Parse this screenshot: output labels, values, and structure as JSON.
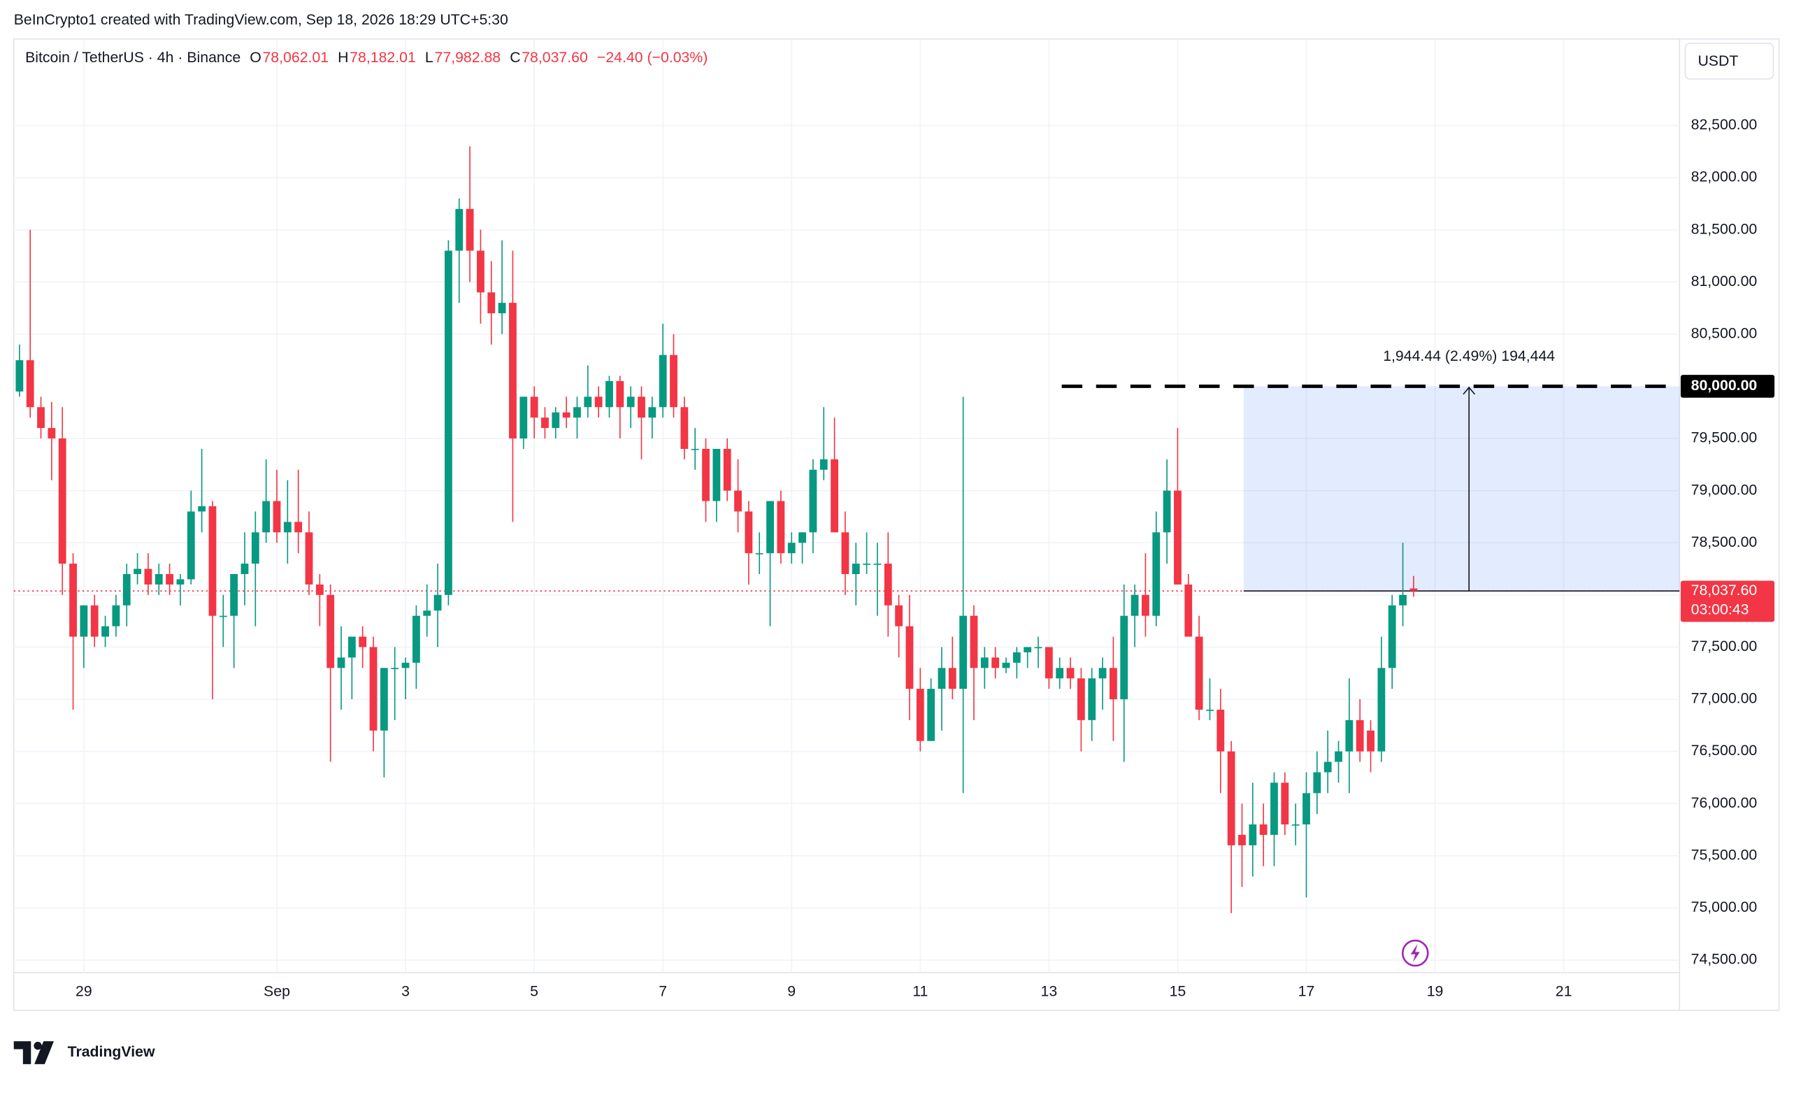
{
  "header": {
    "credit": "BeInCrypto1 created with TradingView.com, Sep 18, 2026 18:29 UTC+5:30"
  },
  "legend": {
    "symbol": "Bitcoin / TetherUS · 4h · Binance",
    "ohlc": [
      {
        "key": "O",
        "value": "78,062.01"
      },
      {
        "key": "H",
        "value": "78,182.01"
      },
      {
        "key": "L",
        "value": "77,982.88"
      },
      {
        "key": "C",
        "value": "78,037.60"
      }
    ],
    "change": "−24.40 (−0.03%)"
  },
  "currency": "USDT",
  "logo": "TradingView",
  "chart_data": {
    "type": "candlestick",
    "up_color": "#089981",
    "down_color": "#f23645",
    "xlim": [
      -0.53,
      154.8
    ],
    "xticks": [
      {
        "value": 6,
        "label": "29"
      },
      {
        "value": 24,
        "label": "Sep"
      },
      {
        "value": 36,
        "label": "3"
      },
      {
        "value": 48,
        "label": "5"
      },
      {
        "value": 60,
        "label": "7"
      },
      {
        "value": 72,
        "label": "9"
      },
      {
        "value": 84,
        "label": "11"
      },
      {
        "value": 96,
        "label": "13"
      },
      {
        "value": 108,
        "label": "15"
      },
      {
        "value": 120,
        "label": "17"
      },
      {
        "value": 132,
        "label": "19"
      },
      {
        "value": 144,
        "label": "21"
      }
    ],
    "ylim": [
      74380,
      83330
    ],
    "yticks": [
      {
        "value": 74500,
        "label": "74,500.00"
      },
      {
        "value": 75000,
        "label": "75,000.00"
      },
      {
        "value": 75500,
        "label": "75,500.00"
      },
      {
        "value": 76000,
        "label": "76,000.00"
      },
      {
        "value": 76500,
        "label": "76,500.00"
      },
      {
        "value": 77000,
        "label": "77,000.00"
      },
      {
        "value": 77500,
        "label": "77,500.00"
      },
      {
        "value": 78000,
        "label": "78,000.00"
      },
      {
        "value": 78500,
        "label": "78,500.00"
      },
      {
        "value": 79000,
        "label": "79,000.00"
      },
      {
        "value": 79500,
        "label": "79,500.00"
      },
      {
        "value": 80500,
        "label": "80,500.00"
      },
      {
        "value": 81000,
        "label": "81,000.00"
      },
      {
        "value": 81500,
        "label": "81,500.00"
      },
      {
        "value": 82000,
        "label": "82,000.00"
      },
      {
        "value": 82500,
        "label": "82,500.00"
      }
    ],
    "grid": true,
    "open": [
      79950,
      80250,
      79800,
      79600,
      79500,
      78300,
      77600,
      77900,
      77600,
      77700,
      77900,
      78200,
      78250,
      78100,
      78200,
      78100,
      78150,
      78800,
      78850,
      77800,
      77800,
      78200,
      78300,
      78600,
      78900,
      78600,
      78700,
      78600,
      78100,
      78000,
      77300,
      77400,
      77600,
      77500,
      76700,
      77300,
      77300,
      77350,
      77800,
      77850,
      78000,
      81300,
      81700,
      81300,
      80900,
      80700,
      80800,
      79500,
      79900,
      79700,
      79600,
      79750,
      79700,
      79800,
      79900,
      79800,
      80050,
      79800,
      79900,
      79700,
      79800,
      80300,
      79800,
      79400,
      79400,
      78900,
      79400,
      79000,
      78800,
      78400,
      78400,
      78900,
      78400,
      78500,
      78600,
      79200,
      79300,
      78600,
      78200,
      78300,
      78300,
      78300,
      77900,
      77700,
      77100,
      76600,
      77100,
      77300,
      77100,
      77800,
      77300,
      77400,
      77300,
      77350,
      77450,
      77500,
      77500,
      77200,
      77300,
      77200,
      76800,
      77200,
      77300,
      77000,
      77800,
      78000,
      77800,
      78600,
      79000,
      78100,
      77600,
      76900,
      76900,
      76500,
      75700,
      75600,
      75800,
      75700,
      76200,
      75800,
      75800,
      76100,
      76300,
      76400,
      76500,
      76800,
      76700,
      76500,
      77300,
      77900,
      78062.01
    ],
    "high": [
      80400,
      81500,
      79900,
      79850,
      79800,
      78400,
      77900,
      78000,
      77800,
      78000,
      78300,
      78400,
      78400,
      78300,
      78300,
      78200,
      79000,
      79400,
      78900,
      78000,
      78200,
      78600,
      78800,
      79300,
      79200,
      79100,
      79200,
      78800,
      78200,
      78100,
      77700,
      77600,
      77700,
      77600,
      77300,
      77500,
      77400,
      77900,
      78100,
      78300,
      81400,
      81800,
      82300,
      81500,
      81200,
      81400,
      81300,
      79900,
      80000,
      79800,
      79800,
      79900,
      79900,
      80200,
      80000,
      80100,
      80100,
      80000,
      80000,
      79900,
      80600,
      80500,
      79900,
      79600,
      79500,
      79400,
      79500,
      79300,
      78900,
      78600,
      78900,
      79000,
      78600,
      78600,
      79300,
      79800,
      79700,
      78800,
      78500,
      78600,
      78500,
      78600,
      78000,
      78000,
      77300,
      77200,
      77500,
      77600,
      79900,
      77900,
      77500,
      77500,
      77400,
      77500,
      77500,
      77600,
      77500,
      77400,
      77400,
      77300,
      77300,
      77400,
      77600,
      78100,
      78100,
      78400,
      78800,
      79300,
      79600,
      78200,
      77800,
      77200,
      77100,
      76600,
      76000,
      76200,
      76000,
      76300,
      76300,
      76000,
      76300,
      76500,
      76700,
      76600,
      77200,
      77000,
      76800,
      77600,
      78000,
      78500,
      78182.01
    ],
    "low": [
      79900,
      79700,
      79500,
      79100,
      78000,
      76900,
      77300,
      77500,
      77500,
      77600,
      77700,
      78100,
      78000,
      78000,
      78000,
      77900,
      78100,
      78600,
      77000,
      77500,
      77300,
      77900,
      77700,
      78500,
      78500,
      78300,
      78400,
      78000,
      77700,
      76400,
      76900,
      77000,
      77300,
      76500,
      76250,
      76800,
      77000,
      77100,
      77600,
      77500,
      77900,
      80800,
      81000,
      80600,
      80400,
      80500,
      78700,
      79400,
      79500,
      79500,
      79500,
      79600,
      79500,
      79700,
      79700,
      79700,
      79500,
      79600,
      79300,
      79500,
      79700,
      79700,
      79300,
      79200,
      78700,
      78700,
      78900,
      78600,
      78100,
      78200,
      77700,
      78300,
      78300,
      78300,
      78400,
      79100,
      78600,
      78000,
      77900,
      78200,
      77800,
      77600,
      77400,
      76800,
      76500,
      76600,
      76700,
      77000,
      76100,
      76800,
      77100,
      77200,
      77250,
      77200,
      77300,
      77300,
      77100,
      77100,
      77100,
      76500,
      76600,
      76900,
      76600,
      76400,
      77500,
      77600,
      77700,
      78300,
      78100,
      77600,
      76800,
      76800,
      76100,
      74950,
      75200,
      75300,
      75400,
      75400,
      75700,
      75600,
      75100,
      75900,
      76100,
      76200,
      76100,
      76400,
      76300,
      76400,
      77100,
      77700,
      77982.88
    ],
    "close": [
      80250,
      79800,
      79600,
      79500,
      78300,
      77600,
      77900,
      77600,
      77700,
      77900,
      78200,
      78250,
      78100,
      78200,
      78100,
      78150,
      78800,
      78850,
      77800,
      77800,
      78200,
      78300,
      78600,
      78900,
      78600,
      78700,
      78600,
      78100,
      78000,
      77300,
      77400,
      77600,
      77500,
      76700,
      77300,
      77300,
      77350,
      77800,
      77850,
      78000,
      81300,
      81700,
      81300,
      80900,
      80700,
      80800,
      79500,
      79900,
      79700,
      79600,
      79750,
      79700,
      79800,
      79900,
      79800,
      80050,
      79800,
      79900,
      79700,
      79800,
      80300,
      79800,
      79400,
      79400,
      78900,
      79400,
      79000,
      78800,
      78400,
      78400,
      78900,
      78400,
      78500,
      78600,
      79200,
      79300,
      78600,
      78200,
      78300,
      78300,
      78300,
      77900,
      77700,
      77100,
      76600,
      77100,
      77300,
      77100,
      77800,
      77300,
      77400,
      77300,
      77350,
      77450,
      77500,
      77500,
      77200,
      77300,
      77200,
      76800,
      77200,
      77300,
      77000,
      77800,
      78000,
      77800,
      78600,
      79000,
      78100,
      77600,
      76900,
      76900,
      76500,
      75600,
      75600,
      75800,
      75700,
      76200,
      75800,
      75800,
      76100,
      76300,
      76400,
      76500,
      76800,
      76500,
      76500,
      77300,
      77900,
      78000,
      78037.6
    ],
    "resistance": {
      "value": 80000,
      "label": "80,000.00"
    },
    "last_price": {
      "value": 78037.6,
      "label": "78,037.60",
      "countdown": "03:00:43"
    },
    "measure": {
      "label": "1,944.44 (2.49%) 194,444"
    }
  }
}
